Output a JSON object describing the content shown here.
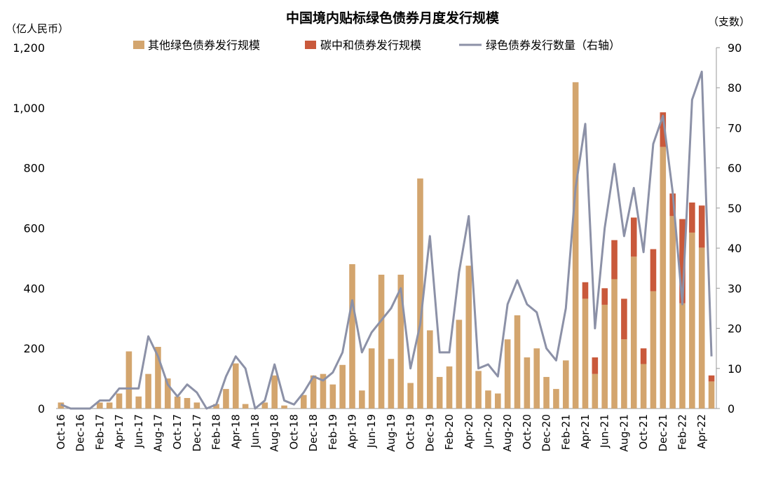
{
  "chart_data": {
    "type": "bar",
    "title": "中国境内贴标绿色债券月度发行规模",
    "left_unit": "（亿人民币）",
    "right_unit": "（支数）",
    "left_axis": {
      "min": 0,
      "max": 1200,
      "step": 200
    },
    "right_axis": {
      "min": 0,
      "max": 90,
      "step": 10
    },
    "x_tick_labels": [
      "Oct-16",
      "Dec-16",
      "Feb-17",
      "Apr-17",
      "Jun-17",
      "Aug-17",
      "Oct-17",
      "Dec-17",
      "Feb-18",
      "Apr-18",
      "Jun-18",
      "Aug-18",
      "Oct-18",
      "Dec-18",
      "Feb-19",
      "Apr-19",
      "Jun-19",
      "Aug-19",
      "Oct-19",
      "Dec-19",
      "Feb-20",
      "Apr-20",
      "Jun-20",
      "Aug-20",
      "Oct-20",
      "Dec-20",
      "Feb-21",
      "Apr-21",
      "Jun-21",
      "Aug-21",
      "Oct-21",
      "Dec-21",
      "Feb-22",
      "Apr-22"
    ],
    "categories": [
      "Oct-16",
      "Nov-16",
      "Dec-16",
      "Jan-17",
      "Feb-17",
      "Mar-17",
      "Apr-17",
      "May-17",
      "Jun-17",
      "Jul-17",
      "Aug-17",
      "Sep-17",
      "Oct-17",
      "Nov-17",
      "Dec-17",
      "Jan-18",
      "Feb-18",
      "Mar-18",
      "Apr-18",
      "May-18",
      "Jun-18",
      "Jul-18",
      "Aug-18",
      "Sep-18",
      "Oct-18",
      "Nov-18",
      "Dec-18",
      "Jan-19",
      "Feb-19",
      "Mar-19",
      "Apr-19",
      "May-19",
      "Jun-19",
      "Jul-19",
      "Aug-19",
      "Sep-19",
      "Oct-19",
      "Nov-19",
      "Dec-19",
      "Jan-20",
      "Feb-20",
      "Mar-20",
      "Apr-20",
      "May-20",
      "Jun-20",
      "Jul-20",
      "Aug-20",
      "Sep-20",
      "Oct-20",
      "Nov-20",
      "Dec-20",
      "Jan-21",
      "Feb-21",
      "Mar-21",
      "Apr-21",
      "May-21",
      "Jun-21",
      "Jul-21",
      "Aug-21",
      "Sep-21",
      "Oct-21",
      "Nov-21",
      "Dec-21",
      "Jan-22",
      "Feb-22",
      "Mar-22",
      "Apr-22",
      "May-22"
    ],
    "series": [
      {
        "name": "其他绿色债券发行规模",
        "kind": "bar",
        "axis": "left",
        "color": "#D3A56E",
        "values": [
          20,
          0,
          0,
          0,
          20,
          20,
          50,
          190,
          40,
          115,
          205,
          100,
          40,
          35,
          20,
          0,
          15,
          65,
          150,
          15,
          0,
          20,
          110,
          10,
          0,
          45,
          110,
          115,
          80,
          145,
          480,
          60,
          200,
          445,
          165,
          445,
          85,
          765,
          260,
          105,
          140,
          295,
          475,
          125,
          60,
          50,
          230,
          310,
          170,
          200,
          105,
          65,
          160,
          1085,
          365,
          115,
          345,
          430,
          230,
          505,
          148,
          390,
          870,
          640,
          350,
          585,
          535,
          90
        ]
      },
      {
        "name": "碳中和债券发行规模",
        "kind": "bar",
        "axis": "left",
        "color": "#C9593B",
        "values": [
          0,
          0,
          0,
          0,
          0,
          0,
          0,
          0,
          0,
          0,
          0,
          0,
          0,
          0,
          0,
          0,
          0,
          0,
          0,
          0,
          0,
          0,
          0,
          0,
          0,
          0,
          0,
          0,
          0,
          0,
          0,
          0,
          0,
          0,
          0,
          0,
          0,
          0,
          0,
          0,
          0,
          0,
          0,
          0,
          0,
          0,
          0,
          0,
          0,
          0,
          0,
          0,
          0,
          0,
          55,
          55,
          55,
          130,
          135,
          130,
          52,
          140,
          115,
          75,
          280,
          100,
          140,
          20
        ]
      },
      {
        "name": "绿色债券发行数量（右轴）",
        "kind": "line",
        "axis": "right",
        "color": "#8C91A7",
        "values": [
          1,
          0,
          0,
          0,
          2,
          2,
          5,
          5,
          5,
          18,
          13,
          6,
          3,
          6,
          4,
          0,
          1,
          8,
          13,
          10,
          0,
          2,
          11,
          2,
          1,
          4,
          8,
          7,
          9,
          14,
          27,
          14,
          19,
          22,
          25,
          30,
          10,
          21,
          43,
          14,
          14,
          34,
          48,
          10,
          11,
          8,
          26,
          32,
          26,
          24,
          15,
          12,
          25,
          55,
          71,
          20,
          45,
          61,
          43,
          55,
          39,
          66,
          73,
          54,
          26,
          77,
          84,
          13
        ]
      }
    ],
    "legend_position": "top",
    "grid": false
  }
}
